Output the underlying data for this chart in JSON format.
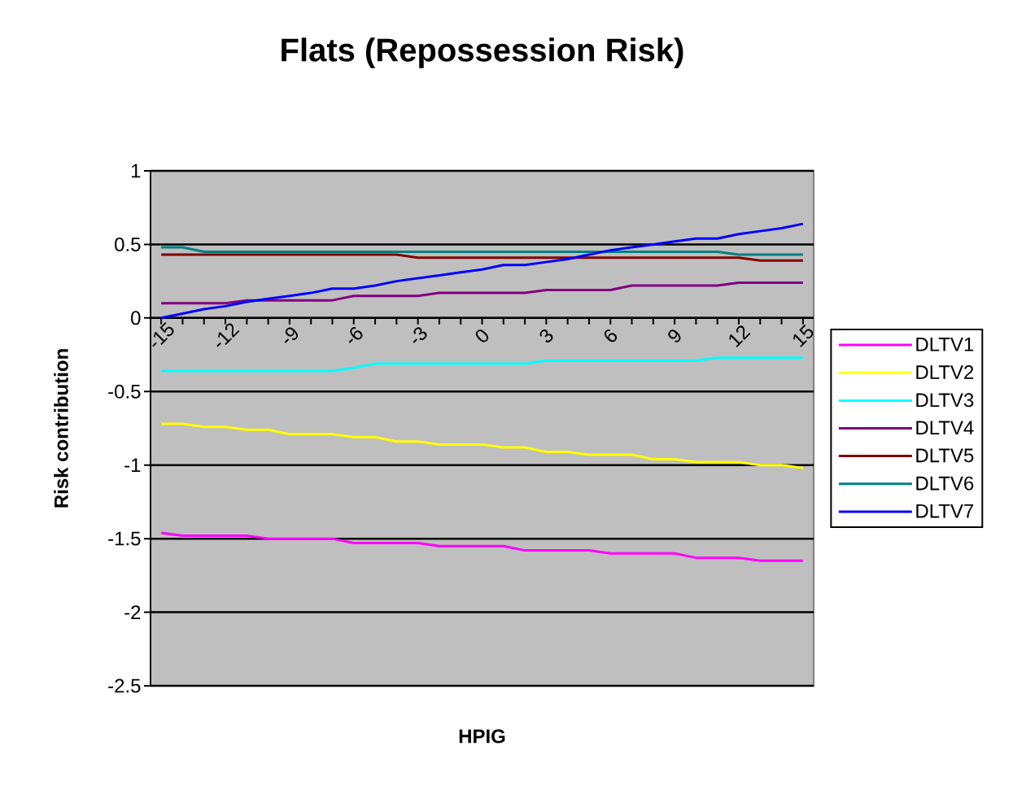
{
  "chart_data": {
    "type": "line",
    "title": "Flats (Repossession Risk)",
    "xlabel": "HPIG",
    "ylabel": "Risk contribution",
    "categories": [
      "-15",
      null,
      null,
      "-12",
      null,
      null,
      "-9",
      null,
      null,
      "-6",
      null,
      null,
      "-3",
      null,
      null,
      "0",
      null,
      null,
      "3",
      null,
      null,
      "6",
      null,
      null,
      "9",
      null,
      null,
      "12",
      null,
      null,
      "15"
    ],
    "ylim": [
      -2.5,
      1
    ],
    "yticks": [
      -2.5,
      -2,
      -1.5,
      -1,
      -0.5,
      0,
      0.5,
      1
    ],
    "grid": "y",
    "legend": "right",
    "series": [
      {
        "name": "DLTV1",
        "color": "#ff00ff",
        "values": [
          -1.46,
          -1.48,
          -1.48,
          -1.48,
          -1.48,
          -1.5,
          -1.5,
          -1.5,
          -1.5,
          -1.53,
          -1.53,
          -1.53,
          -1.53,
          -1.55,
          -1.55,
          -1.55,
          -1.55,
          -1.58,
          -1.58,
          -1.58,
          -1.58,
          -1.6,
          -1.6,
          -1.6,
          -1.6,
          -1.63,
          -1.63,
          -1.63,
          -1.65,
          -1.65,
          -1.65
        ]
      },
      {
        "name": "DLTV2",
        "color": "#ffff00",
        "values": [
          -0.72,
          -0.72,
          -0.74,
          -0.74,
          -0.76,
          -0.76,
          -0.79,
          -0.79,
          -0.79,
          -0.81,
          -0.81,
          -0.84,
          -0.84,
          -0.86,
          -0.86,
          -0.86,
          -0.88,
          -0.88,
          -0.91,
          -0.91,
          -0.93,
          -0.93,
          -0.93,
          -0.96,
          -0.96,
          -0.98,
          -0.98,
          -0.98,
          -1.0,
          -1.0,
          -1.02
        ]
      },
      {
        "name": "DLTV3",
        "color": "#00ffff",
        "values": [
          -0.36,
          -0.36,
          -0.36,
          -0.36,
          -0.36,
          -0.36,
          -0.36,
          -0.36,
          -0.36,
          -0.34,
          -0.31,
          -0.31,
          -0.31,
          -0.31,
          -0.31,
          -0.31,
          -0.31,
          -0.31,
          -0.29,
          -0.29,
          -0.29,
          -0.29,
          -0.29,
          -0.29,
          -0.29,
          -0.29,
          -0.27,
          -0.27,
          -0.27,
          -0.27,
          -0.27
        ]
      },
      {
        "name": "DLTV4",
        "color": "#800080",
        "values": [
          0.1,
          0.1,
          0.1,
          0.1,
          0.12,
          0.12,
          0.12,
          0.12,
          0.12,
          0.15,
          0.15,
          0.15,
          0.15,
          0.17,
          0.17,
          0.17,
          0.17,
          0.17,
          0.19,
          0.19,
          0.19,
          0.19,
          0.22,
          0.22,
          0.22,
          0.22,
          0.22,
          0.24,
          0.24,
          0.24,
          0.24
        ]
      },
      {
        "name": "DLTV5",
        "color": "#800000",
        "values": [
          0.43,
          0.43,
          0.43,
          0.43,
          0.43,
          0.43,
          0.43,
          0.43,
          0.43,
          0.43,
          0.43,
          0.43,
          0.41,
          0.41,
          0.41,
          0.41,
          0.41,
          0.41,
          0.41,
          0.41,
          0.41,
          0.41,
          0.41,
          0.41,
          0.41,
          0.41,
          0.41,
          0.41,
          0.39,
          0.39,
          0.39
        ]
      },
      {
        "name": "DLTV6",
        "color": "#008080",
        "values": [
          0.48,
          0.48,
          0.45,
          0.45,
          0.45,
          0.45,
          0.45,
          0.45,
          0.45,
          0.45,
          0.45,
          0.45,
          0.45,
          0.45,
          0.45,
          0.45,
          0.45,
          0.45,
          0.45,
          0.45,
          0.45,
          0.45,
          0.45,
          0.45,
          0.45,
          0.45,
          0.45,
          0.43,
          0.43,
          0.43,
          0.43
        ]
      },
      {
        "name": "DLTV7",
        "color": "#0000ff",
        "values": [
          0.0,
          0.03,
          0.06,
          0.08,
          0.11,
          0.13,
          0.15,
          0.17,
          0.2,
          0.2,
          0.22,
          0.25,
          0.27,
          0.29,
          0.31,
          0.33,
          0.36,
          0.36,
          0.38,
          0.4,
          0.43,
          0.46,
          0.48,
          0.5,
          0.52,
          0.54,
          0.54,
          0.57,
          0.59,
          0.61,
          0.64
        ]
      }
    ]
  }
}
